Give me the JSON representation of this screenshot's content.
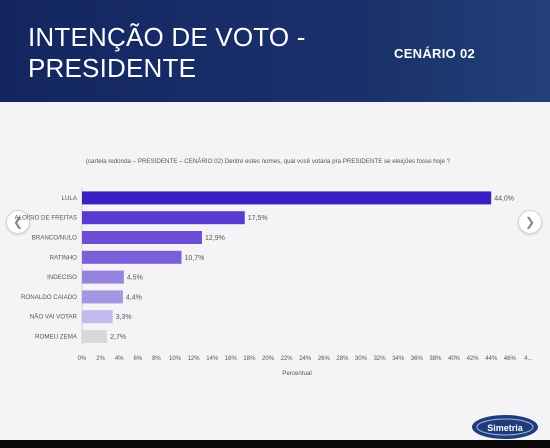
{
  "header": {
    "title_line1": "INTENÇÃO DE VOTO -",
    "title_line2": "PRESIDENTE",
    "scenario": "CENÁRIO 02"
  },
  "nav": {
    "prev_icon": "chevron-left-icon",
    "next_icon": "chevron-right-icon"
  },
  "logo": {
    "text": "Simetria"
  },
  "colors": {
    "header_bg": "#13265f",
    "bars": [
      "#3a1fc4",
      "#5a3bd2",
      "#6c4fd4",
      "#7a60d8",
      "#9583de",
      "#a596e2",
      "#c3b9ec",
      "#d9d9d9"
    ]
  },
  "chart_data": {
    "type": "bar",
    "orientation": "horizontal",
    "title": "(cartela redonda – PRESIDENTE – CENÁRIO 02) Dentre estes nomes, qual você votaria pra PRESIDENTE se eleições fosse hoje ?",
    "xlabel": "Percentual",
    "ylabel": "",
    "categories": [
      "LULA",
      "ALOÍSIO DE FREITAS",
      "BRANCO/NULO",
      "RATINHO",
      "INDECISO",
      "RONALDO CAIADO",
      "NÃO VAI VOTAR",
      "ROMEU ZEMA"
    ],
    "values": [
      44.0,
      17.5,
      12.9,
      10.7,
      4.5,
      4.4,
      3.3,
      2.7
    ],
    "data_labels": [
      "44,0%",
      "17,5%",
      "12,9%",
      "10,7%",
      "4,5%",
      "4,4%",
      "3,3%",
      "2,7%"
    ],
    "xlim": [
      0,
      48
    ],
    "x_ticks": [
      "0%",
      "2%",
      "4%",
      "6%",
      "8%",
      "10%",
      "12%",
      "14%",
      "16%",
      "18%",
      "20%",
      "22%",
      "24%",
      "26%",
      "28%",
      "30%",
      "32%",
      "34%",
      "36%",
      "38%",
      "40%",
      "42%",
      "44%",
      "46%",
      "4..."
    ],
    "grid": false
  }
}
